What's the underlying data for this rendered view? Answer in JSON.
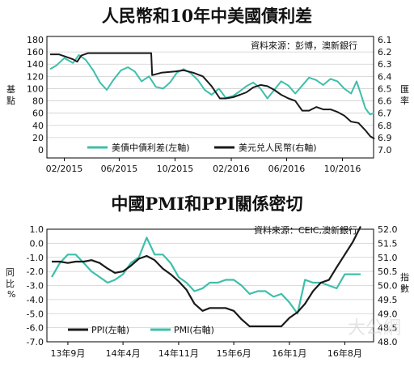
{
  "chart_data": [
    {
      "type": "line",
      "title": "人民幣和10年中美國債利差",
      "source": "資料來源：彭博，澳新銀行",
      "ylabel_left": "基點",
      "ylabel_right": "匯率",
      "left_ticks": [
        "180",
        "160",
        "140",
        "120",
        "100",
        "80",
        "60",
        "40",
        "20",
        "0"
      ],
      "right_ticks": [
        "6.1",
        "6.2",
        "6.3",
        "6.4",
        "6.5",
        "6.6",
        "6.7",
        "6.8",
        "6.9",
        "7.0"
      ],
      "x_ticks": [
        "02/2015",
        "06/2015",
        "10/2015",
        "02/2016",
        "06/2016",
        "10/2016"
      ],
      "ylim_left": [
        0,
        180
      ],
      "ylim_right": [
        6.1,
        7.0
      ],
      "right_inverted": true,
      "x_range": [
        "2015-01",
        "2016-12"
      ],
      "grid": "horizontal",
      "legend": [
        "美債中債利差(左軸)",
        "美元兑人民幣(右軸)"
      ],
      "colors": {
        "spread": "#3dbfaa",
        "usdcny": "#1a1a1a"
      },
      "series": [
        {
          "name": "美債中債利差(左軸)",
          "axis": "left",
          "points": [
            [
              "2015-01-01",
              132
            ],
            [
              "2015-01-15",
              138
            ],
            [
              "2015-02-01",
              150
            ],
            [
              "2015-02-20",
              142
            ],
            [
              "2015-03-05",
              155
            ],
            [
              "2015-03-20",
              147
            ],
            [
              "2015-04-05",
              130
            ],
            [
              "2015-04-20",
              110
            ],
            [
              "2015-05-05",
              98
            ],
            [
              "2015-05-20",
              115
            ],
            [
              "2015-06-05",
              130
            ],
            [
              "2015-06-20",
              135
            ],
            [
              "2015-07-05",
              128
            ],
            [
              "2015-07-20",
              112
            ],
            [
              "2015-08-05",
              120
            ],
            [
              "2015-08-20",
              103
            ],
            [
              "2015-09-05",
              100
            ],
            [
              "2015-09-20",
              110
            ],
            [
              "2015-10-05",
              126
            ],
            [
              "2015-10-20",
              132
            ],
            [
              "2015-11-05",
              125
            ],
            [
              "2015-11-20",
              114
            ],
            [
              "2015-12-05",
              98
            ],
            [
              "2015-12-20",
              90
            ],
            [
              "2016-01-05",
              100
            ],
            [
              "2016-01-20",
              85
            ],
            [
              "2016-02-05",
              88
            ],
            [
              "2016-02-20",
              96
            ],
            [
              "2016-03-05",
              104
            ],
            [
              "2016-03-20",
              110
            ],
            [
              "2016-04-05",
              100
            ],
            [
              "2016-04-20",
              84
            ],
            [
              "2016-05-05",
              98
            ],
            [
              "2016-05-20",
              112
            ],
            [
              "2016-06-05",
              105
            ],
            [
              "2016-06-20",
              92
            ],
            [
              "2016-07-05",
              105
            ],
            [
              "2016-07-20",
              118
            ],
            [
              "2016-08-05",
              114
            ],
            [
              "2016-08-20",
              106
            ],
            [
              "2016-09-05",
              116
            ],
            [
              "2016-09-20",
              112
            ],
            [
              "2016-10-05",
              100
            ],
            [
              "2016-10-20",
              92
            ],
            [
              "2016-11-01",
              112
            ],
            [
              "2016-11-10",
              92
            ],
            [
              "2016-11-20",
              68
            ],
            [
              "2016-11-30",
              58
            ],
            [
              "2016-12-10",
              60
            ]
          ]
        },
        {
          "name": "美元兑人民幣(右軸)",
          "axis": "right",
          "points": [
            [
              "2015-01-01",
              6.22
            ],
            [
              "2015-01-20",
              6.22
            ],
            [
              "2015-02-05",
              6.24
            ],
            [
              "2015-02-20",
              6.26
            ],
            [
              "2015-03-01",
              6.28
            ],
            [
              "2015-03-10",
              6.23
            ],
            [
              "2015-03-25",
              6.21
            ],
            [
              "2015-04-10",
              6.21
            ],
            [
              "2015-05-10",
              6.21
            ],
            [
              "2015-06-10",
              6.21
            ],
            [
              "2015-07-10",
              6.21
            ],
            [
              "2015-08-10",
              6.21
            ],
            [
              "2015-08-12",
              6.39
            ],
            [
              "2015-09-01",
              6.37
            ],
            [
              "2015-10-01",
              6.36
            ],
            [
              "2015-10-20",
              6.35
            ],
            [
              "2015-11-10",
              6.37
            ],
            [
              "2015-12-01",
              6.4
            ],
            [
              "2015-12-20",
              6.48
            ],
            [
              "2016-01-07",
              6.58
            ],
            [
              "2016-01-20",
              6.58
            ],
            [
              "2016-02-05",
              6.57
            ],
            [
              "2016-02-20",
              6.55
            ],
            [
              "2016-03-05",
              6.53
            ],
            [
              "2016-03-20",
              6.49
            ],
            [
              "2016-04-05",
              6.47
            ],
            [
              "2016-04-20",
              6.48
            ],
            [
              "2016-05-05",
              6.51
            ],
            [
              "2016-05-20",
              6.55
            ],
            [
              "2016-06-05",
              6.58
            ],
            [
              "2016-06-20",
              6.6
            ],
            [
              "2016-07-05",
              6.68
            ],
            [
              "2016-07-20",
              6.68
            ],
            [
              "2016-08-05",
              6.65
            ],
            [
              "2016-08-20",
              6.67
            ],
            [
              "2016-09-05",
              6.67
            ],
            [
              "2016-09-20",
              6.69
            ],
            [
              "2016-10-05",
              6.72
            ],
            [
              "2016-10-20",
              6.77
            ],
            [
              "2016-11-05",
              6.78
            ],
            [
              "2016-11-20",
              6.84
            ],
            [
              "2016-12-01",
              6.89
            ],
            [
              "2016-12-10",
              6.91
            ]
          ]
        }
      ]
    },
    {
      "type": "line",
      "title": "中國PMI和PPI關係密切",
      "source": "資料來源：CEIC,澳新銀行",
      "ylabel_left": "同比%",
      "ylabel_right": "指數",
      "left_ticks": [
        "1.0",
        "0.0",
        "-1.0",
        "-2.0",
        "-3.0",
        "-4.0",
        "-5.0",
        "-6.0",
        "-7.0"
      ],
      "right_ticks": [
        "52.0",
        "51.5",
        "51.0",
        "50.5",
        "50.0",
        "49.5",
        "49.0",
        "48.5",
        "48.0"
      ],
      "x_ticks": [
        "13年9月",
        "14年4月",
        "14年11月",
        "15年6月",
        "16年1月",
        "16年8月"
      ],
      "ylim_left": [
        -7,
        1
      ],
      "ylim_right": [
        48,
        52
      ],
      "x_range": [
        "2013-07",
        "2016-11"
      ],
      "grid": "horizontal",
      "legend": [
        "PPI(左軸)",
        "PMI(右軸)"
      ],
      "colors": {
        "ppi": "#1a1a1a",
        "pmi": "#3dbfaa"
      },
      "series": [
        {
          "name": "PPI(左軸)",
          "axis": "left",
          "points": [
            [
              "2013-07",
              -1.3
            ],
            [
              "2013-08",
              -1.3
            ],
            [
              "2013-09",
              -1.4
            ],
            [
              "2013-10",
              -1.3
            ],
            [
              "2013-11",
              -1.3
            ],
            [
              "2013-12",
              -1.2
            ],
            [
              "2014-01",
              -1.4
            ],
            [
              "2014-02",
              -1.8
            ],
            [
              "2014-03",
              -2.1
            ],
            [
              "2014-04",
              -2.0
            ],
            [
              "2014-05",
              -1.6
            ],
            [
              "2014-06",
              -1.1
            ],
            [
              "2014-07",
              -0.9
            ],
            [
              "2014-08",
              -1.2
            ],
            [
              "2014-09",
              -1.8
            ],
            [
              "2014-10",
              -2.2
            ],
            [
              "2014-11",
              -2.7
            ],
            [
              "2014-12",
              -3.3
            ],
            [
              "2015-01",
              -4.3
            ],
            [
              "2015-02",
              -4.8
            ],
            [
              "2015-03",
              -4.6
            ],
            [
              "2015-04",
              -4.6
            ],
            [
              "2015-05",
              -4.6
            ],
            [
              "2015-06",
              -4.8
            ],
            [
              "2015-07",
              -5.4
            ],
            [
              "2015-08",
              -5.9
            ],
            [
              "2015-09",
              -5.9
            ],
            [
              "2015-10",
              -5.9
            ],
            [
              "2015-11",
              -5.9
            ],
            [
              "2015-12",
              -5.9
            ],
            [
              "2016-01",
              -5.3
            ],
            [
              "2016-02",
              -4.9
            ],
            [
              "2016-03",
              -4.3
            ],
            [
              "2016-04",
              -3.4
            ],
            [
              "2016-05",
              -2.8
            ],
            [
              "2016-06",
              -2.6
            ],
            [
              "2016-07",
              -1.7
            ],
            [
              "2016-08",
              -0.8
            ],
            [
              "2016-09",
              0.1
            ],
            [
              "2016-10",
              1.2
            ]
          ]
        },
        {
          "name": "PMI(右軸)",
          "axis": "right",
          "points": [
            [
              "2013-07",
              50.3
            ],
            [
              "2013-08",
              50.8
            ],
            [
              "2013-09",
              51.1
            ],
            [
              "2013-10",
              51.1
            ],
            [
              "2013-11",
              50.8
            ],
            [
              "2013-12",
              50.5
            ],
            [
              "2014-01",
              50.3
            ],
            [
              "2014-02",
              50.1
            ],
            [
              "2014-03",
              50.2
            ],
            [
              "2014-04",
              50.4
            ],
            [
              "2014-05",
              50.8
            ],
            [
              "2014-06",
              51.0
            ],
            [
              "2014-07",
              51.7
            ],
            [
              "2014-08",
              51.1
            ],
            [
              "2014-09",
              51.1
            ],
            [
              "2014-10",
              50.8
            ],
            [
              "2014-11",
              50.3
            ],
            [
              "2014-12",
              50.1
            ],
            [
              "2015-01",
              49.8
            ],
            [
              "2015-02",
              49.9
            ],
            [
              "2015-03",
              50.1
            ],
            [
              "2015-04",
              50.1
            ],
            [
              "2015-05",
              50.2
            ],
            [
              "2015-06",
              50.2
            ],
            [
              "2015-07",
              50.0
            ],
            [
              "2015-08",
              49.7
            ],
            [
              "2015-09",
              49.8
            ],
            [
              "2015-10",
              49.8
            ],
            [
              "2015-11",
              49.6
            ],
            [
              "2015-12",
              49.7
            ],
            [
              "2016-01",
              49.4
            ],
            [
              "2016-02",
              49.0
            ],
            [
              "2016-03",
              50.2
            ],
            [
              "2016-04",
              50.1
            ],
            [
              "2016-05",
              50.1
            ],
            [
              "2016-06",
              50.0
            ],
            [
              "2016-07",
              49.9
            ],
            [
              "2016-08",
              50.4
            ],
            [
              "2016-09",
              50.4
            ],
            [
              "2016-10",
              50.4
            ]
          ]
        }
      ]
    }
  ],
  "watermark": "大公網"
}
